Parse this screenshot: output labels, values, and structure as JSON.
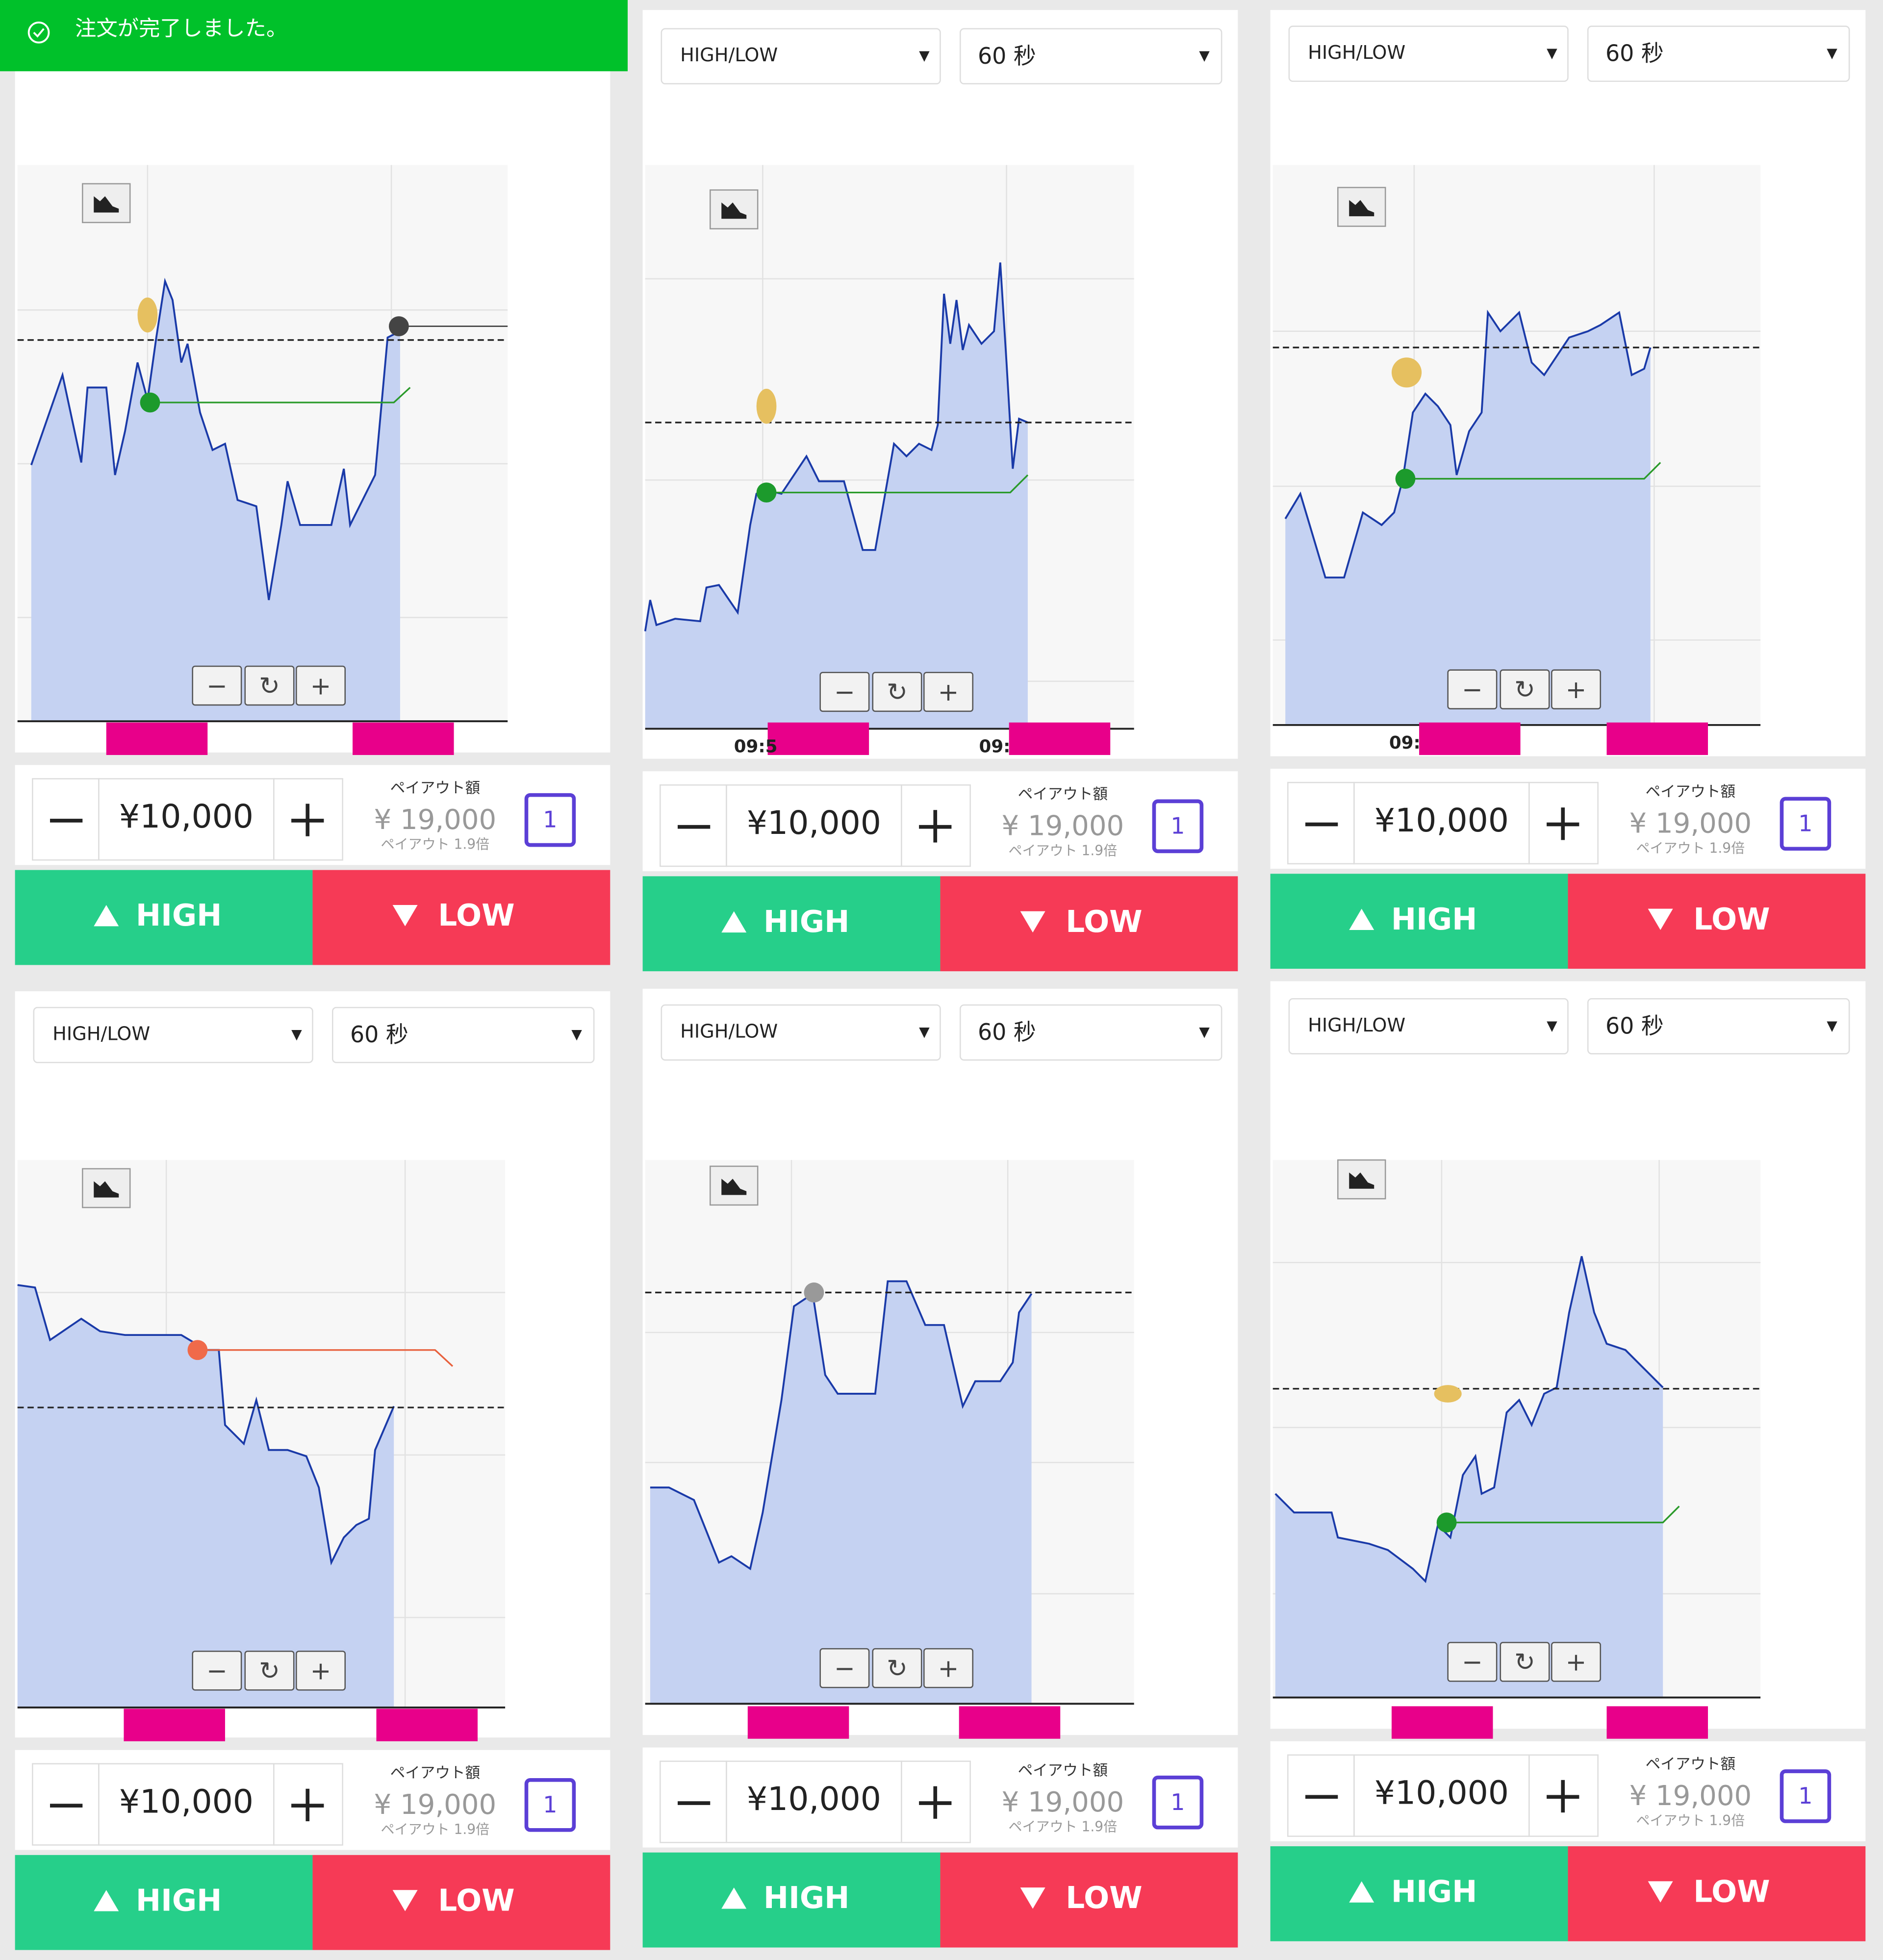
{
  "toast": "注文が完了しました。",
  "panels": [
    {
      "amount": "¥10,000",
      "payout_label": "ペイアウト額",
      "payout": "¥ 19,000",
      "multiplier": "ペイアウト 1.9倍",
      "badge": "1",
      "high": "HIGH",
      "low": "LOW"
    },
    {
      "type_select": "HIGH/LOW",
      "duration": "60 秒",
      "time_labels": [
        "09:5",
        "09:"
      ],
      "amount": "¥10,000",
      "payout_label": "ペイアウト額",
      "payout": "¥ 19,000",
      "multiplier": "ペイアウト 1.9倍",
      "badge": "1",
      "high": "HIGH",
      "low": "LOW"
    },
    {
      "type_select": "HIGH/LOW",
      "duration": "60 秒",
      "time_labels": [
        "09:"
      ],
      "amount": "¥10,000",
      "payout_label": "ペイアウト額",
      "payout": "¥ 19,000",
      "multiplier": "ペイアウト 1.9倍",
      "badge": "1",
      "high": "HIGH",
      "low": "LOW"
    },
    {
      "type_select": "HIGH/LOW",
      "duration": "60 秒",
      "amount": "¥10,000",
      "payout_label": "ペイアウト額",
      "payout": "¥ 19,000",
      "multiplier": "ペイアウト 1.9倍",
      "badge": "1",
      "high": "HIGH",
      "low": "LOW"
    },
    {
      "type_select": "HIGH/LOW",
      "duration": "60 秒",
      "amount": "¥10,000",
      "payout_label": "ペイアウト額",
      "payout": "¥ 19,000",
      "multiplier": "ペイアウト 1.9倍",
      "badge": "1",
      "high": "HIGH",
      "low": "LOW"
    },
    {
      "type_select": "HIGH/LOW",
      "duration": "60 秒",
      "amount": "¥10,000",
      "payout_label": "ペイアウト額",
      "payout": "¥ 19,000",
      "multiplier": "ペイアウト 1.9倍",
      "badge": "1",
      "high": "HIGH",
      "low": "LOW"
    }
  ]
}
